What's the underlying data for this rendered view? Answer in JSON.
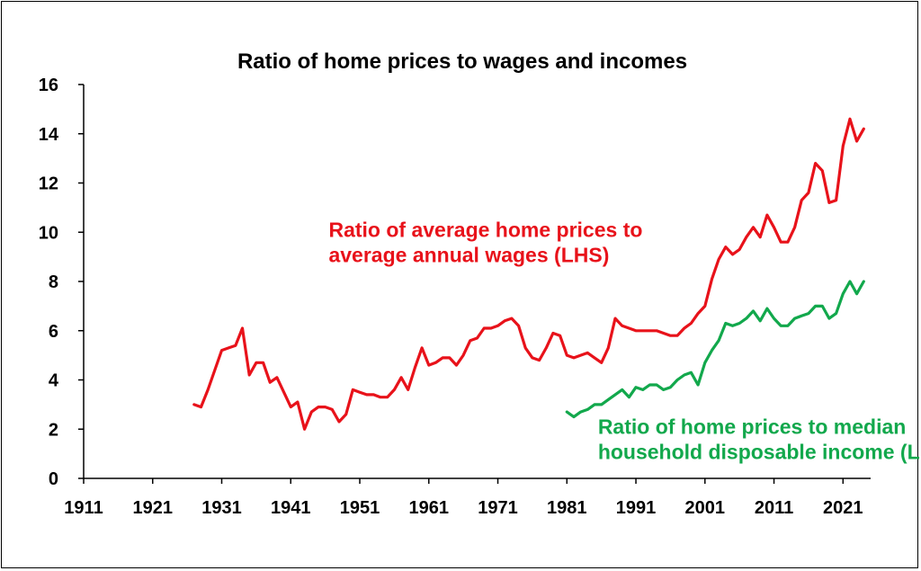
{
  "chart_data": {
    "type": "line",
    "title": "Ratio of home prices to wages and incomes",
    "xlabel": "",
    "ylabel": "",
    "xlim": [
      1911,
      2025
    ],
    "ylim": [
      0,
      16
    ],
    "x_ticks": [
      1911,
      1921,
      1931,
      1941,
      1951,
      1961,
      1971,
      1981,
      1991,
      2001,
      2011,
      2021
    ],
    "y_ticks": [
      0,
      2,
      4,
      6,
      8,
      10,
      12,
      14,
      16
    ],
    "grid": false,
    "legend": "none",
    "annotations": [
      {
        "lines": [
          "Ratio of average home prices to",
          "average annual wages (LHS)"
        ],
        "color": "#e8121a",
        "anchor_x": 1946.5,
        "anchor_y": 9.8
      },
      {
        "lines": [
          "Ratio of home prices to median",
          "household disposable income (LHS)"
        ],
        "color": "#12a84c",
        "anchor_x": 1985.5,
        "anchor_y": 1.8
      }
    ],
    "series": [
      {
        "name": "Ratio of average home prices to average annual wages (LHS)",
        "color": "#e8121a",
        "x": [
          1927,
          1928,
          1929,
          1930,
          1931,
          1932,
          1933,
          1934,
          1935,
          1936,
          1937,
          1938,
          1939,
          1940,
          1941,
          1942,
          1943,
          1944,
          1945,
          1946,
          1947,
          1948,
          1949,
          1950,
          1951,
          1952,
          1953,
          1954,
          1955,
          1956,
          1957,
          1958,
          1959,
          1960,
          1961,
          1962,
          1963,
          1964,
          1965,
          1966,
          1967,
          1968,
          1969,
          1970,
          1971,
          1972,
          1973,
          1974,
          1975,
          1976,
          1977,
          1978,
          1979,
          1980,
          1981,
          1982,
          1983,
          1984,
          1985,
          1986,
          1987,
          1988,
          1989,
          1990,
          1991,
          1992,
          1993,
          1994,
          1995,
          1996,
          1997,
          1998,
          1999,
          2000,
          2001,
          2002,
          2003,
          2004,
          2005,
          2006,
          2007,
          2008,
          2009,
          2010,
          2011,
          2012,
          2013,
          2014,
          2015,
          2016,
          2017,
          2018,
          2019,
          2020,
          2021,
          2022,
          2023,
          2024
        ],
        "y": [
          3.0,
          2.9,
          3.6,
          4.4,
          5.2,
          5.3,
          5.4,
          6.1,
          4.2,
          4.7,
          4.7,
          3.9,
          4.1,
          3.5,
          2.9,
          3.1,
          2.0,
          2.7,
          2.9,
          2.9,
          2.8,
          2.3,
          2.6,
          3.6,
          3.5,
          3.4,
          3.4,
          3.3,
          3.3,
          3.6,
          4.1,
          3.6,
          4.5,
          5.3,
          4.6,
          4.7,
          4.9,
          4.9,
          4.6,
          5.0,
          5.6,
          5.7,
          6.1,
          6.1,
          6.2,
          6.4,
          6.5,
          6.2,
          5.3,
          4.9,
          4.8,
          5.3,
          5.9,
          5.8,
          5.0,
          4.9,
          5.0,
          5.1,
          4.9,
          4.7,
          5.3,
          6.5,
          6.2,
          6.1,
          6.0,
          6.0,
          6.0,
          6.0,
          5.9,
          5.8,
          5.8,
          6.1,
          6.3,
          6.7,
          7.0,
          8.1,
          8.9,
          9.4,
          9.1,
          9.3,
          9.8,
          10.2,
          9.8,
          10.7,
          10.2,
          9.6,
          9.6,
          10.2,
          11.3,
          11.6,
          12.8,
          12.5,
          11.2,
          11.3,
          13.5,
          14.6,
          13.7,
          14.2
        ]
      },
      {
        "name": "Ratio of home prices to median household disposable income (LHS)",
        "color": "#12a84c",
        "x": [
          1981,
          1982,
          1983,
          1984,
          1985,
          1986,
          1987,
          1988,
          1989,
          1990,
          1991,
          1992,
          1993,
          1994,
          1995,
          1996,
          1997,
          1998,
          1999,
          2000,
          2001,
          2002,
          2003,
          2004,
          2005,
          2006,
          2007,
          2008,
          2009,
          2010,
          2011,
          2012,
          2013,
          2014,
          2015,
          2016,
          2017,
          2018,
          2019,
          2020,
          2021,
          2022,
          2023,
          2024
        ],
        "y": [
          2.7,
          2.5,
          2.7,
          2.8,
          3.0,
          3.0,
          3.2,
          3.4,
          3.6,
          3.3,
          3.7,
          3.6,
          3.8,
          3.8,
          3.6,
          3.7,
          4.0,
          4.2,
          4.3,
          3.8,
          4.7,
          5.2,
          5.6,
          6.3,
          6.2,
          6.3,
          6.5,
          6.8,
          6.4,
          6.9,
          6.5,
          6.2,
          6.2,
          6.5,
          6.6,
          6.7,
          7.0,
          7.0,
          6.5,
          6.7,
          7.5,
          8.0,
          7.5,
          8.0
        ]
      }
    ]
  }
}
